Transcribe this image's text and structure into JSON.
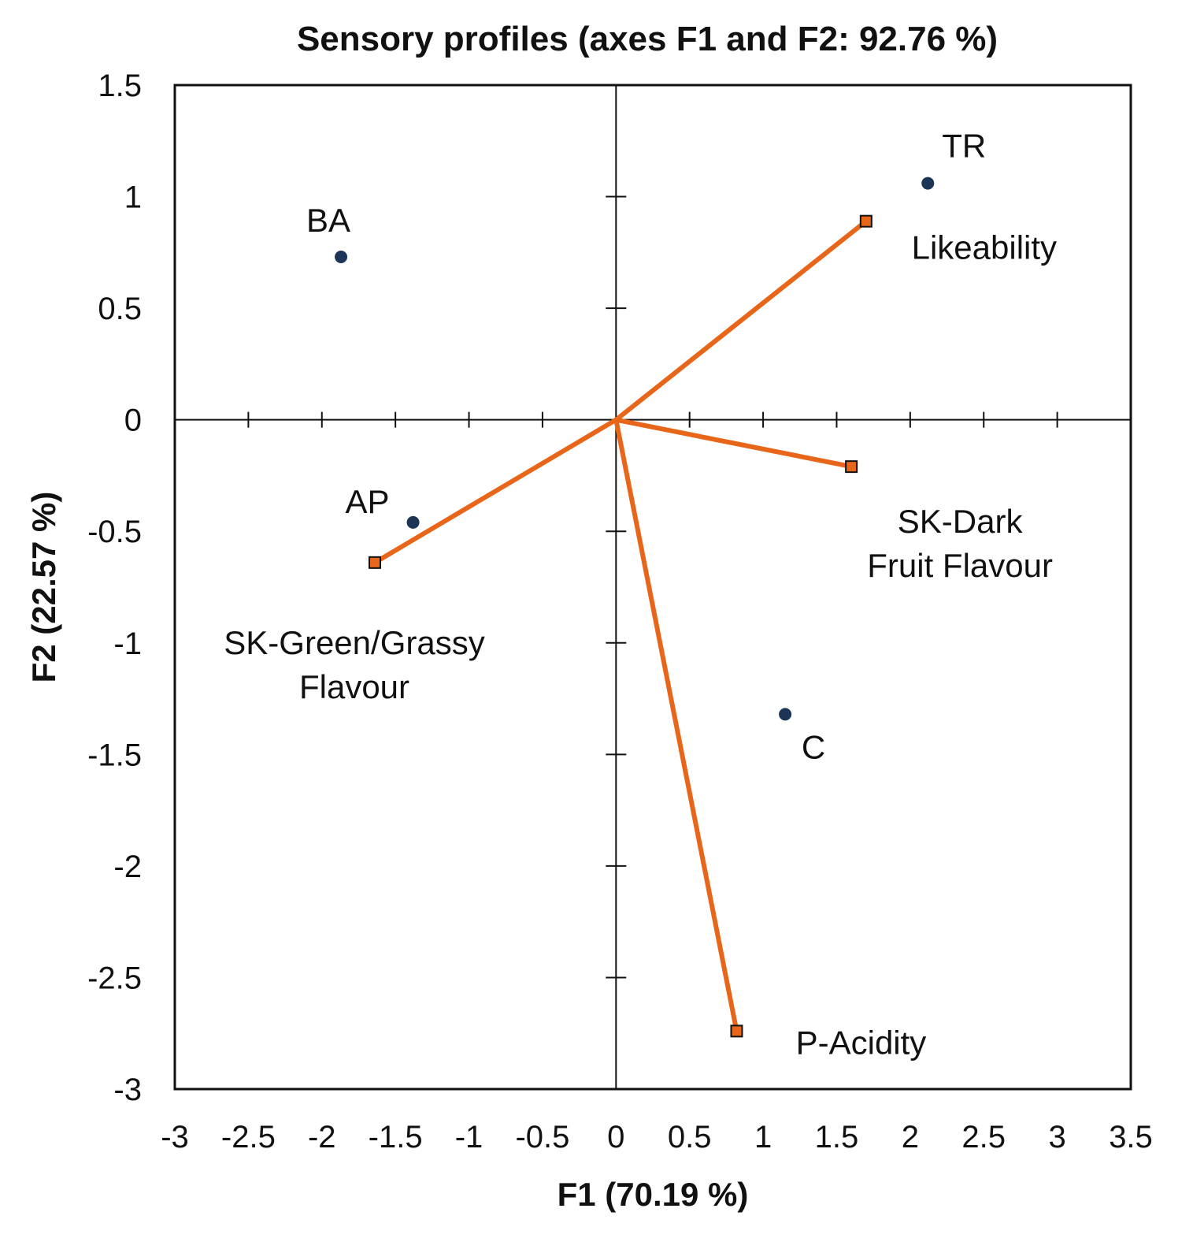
{
  "chart_data": {
    "type": "scatter",
    "title": "Sensory profiles (axes F1 and F2: 92.76 %)",
    "xlabel": "F1 (70.19 %)",
    "ylabel": "F2 (22.57 %)",
    "xlim": [
      -3,
      3.5
    ],
    "ylim": [
      -3,
      1.5
    ],
    "x_ticks": [
      -3,
      -2.5,
      -2,
      -1.5,
      -1,
      -0.5,
      0,
      0.5,
      1,
      1.5,
      2,
      2.5,
      3,
      3.5
    ],
    "x_tick_labels": [
      "-3",
      "-2.5",
      "-2",
      "-1.5",
      "-1",
      "-0.5",
      "0",
      "0.5",
      "1",
      "1.5",
      "2",
      "2.5",
      "3",
      "3.5"
    ],
    "y_ticks": [
      1.5,
      1,
      0.5,
      0,
      -0.5,
      -1,
      -1.5,
      -2,
      -2.5,
      -3
    ],
    "y_tick_labels": [
      "1.5",
      "1",
      "0.5",
      "0",
      "-0.5",
      "-1",
      "-1.5",
      "-2",
      "-2.5",
      "-3"
    ],
    "observations": [
      {
        "name": "BA",
        "x": -1.87,
        "y": 0.73
      },
      {
        "name": "TR",
        "x": 2.12,
        "y": 1.06
      },
      {
        "name": "AP",
        "x": -1.38,
        "y": -0.46
      },
      {
        "name": "C",
        "x": 1.15,
        "y": -1.32
      }
    ],
    "variables": [
      {
        "name": "Likeability",
        "lines": [
          "Likeability"
        ],
        "x": 1.7,
        "y": 0.89
      },
      {
        "name": "SK-Dark Fruit Flavour",
        "lines": [
          "SK-Dark",
          "Fruit Flavour"
        ],
        "x": 1.6,
        "y": -0.21
      },
      {
        "name": "SK-Green/Grassy Flavour",
        "lines": [
          "SK-Green/Grassy",
          "Flavour"
        ],
        "x": -1.64,
        "y": -0.64
      },
      {
        "name": "P-Acidity",
        "lines": [
          "P-Acidity"
        ],
        "x": 0.82,
        "y": -2.74
      }
    ],
    "colors": {
      "vector": "#e8661a",
      "vector_marker": "#e8661a",
      "observation": "#1c3557",
      "frame": "#111111"
    }
  }
}
